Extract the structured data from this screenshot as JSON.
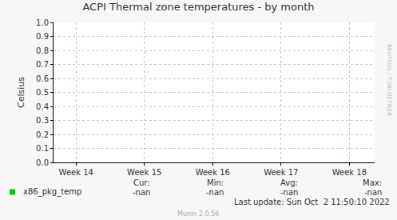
{
  "chart_data": {
    "type": "line",
    "title": "ACPI Thermal zone temperatures - by month",
    "y_label": "Celsius",
    "x": [],
    "series": [
      {
        "name": "x86_pkg_temp",
        "color": "#00cc00",
        "values": []
      }
    ],
    "xlim": [
      13.67,
      18.37
    ],
    "xticks": [
      {
        "value": 14,
        "label": "Week 14"
      },
      {
        "value": 15,
        "label": "Week 15"
      },
      {
        "value": 16,
        "label": "Week 16"
      },
      {
        "value": 17,
        "label": "Week 17"
      },
      {
        "value": 18,
        "label": "Week 18"
      }
    ],
    "ylim": [
      0,
      1
    ],
    "yticks": [
      {
        "value": 0,
        "label": "0.0"
      },
      0.1,
      0.2,
      0.3,
      0.4,
      0.5,
      0.6,
      0.7,
      0.8,
      0.9,
      {
        "value": 1,
        "label": "1.0"
      }
    ],
    "grid": true,
    "stats": {
      "labels": [
        "Cur:",
        "Min:",
        "Avg:",
        "Max:"
      ],
      "rows": [
        [
          "-nan",
          "-nan",
          "-nan",
          "-nan"
        ]
      ]
    },
    "last_update": "Last update: Sun Oct  2 11:50:10 2022",
    "side_text": "RRDTOOL / TOBI OETIKER",
    "footer": "Munin 2.0.56"
  }
}
